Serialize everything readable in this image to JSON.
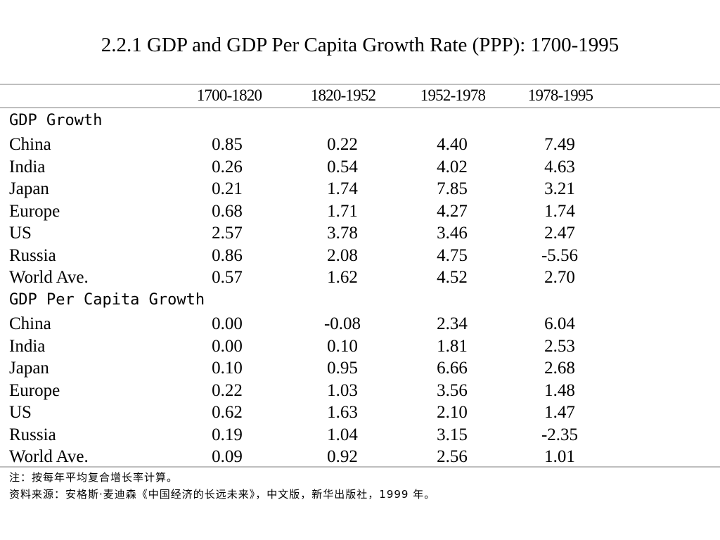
{
  "title": "2.2.1 GDP and GDP Per Capita Growth Rate (PPP): 1700-1995",
  "columns": [
    "1700-1820",
    "1820-1952",
    "1952-1978",
    "1978-1995"
  ],
  "sections": [
    {
      "label": "GDP Growth",
      "rows": [
        {
          "label": "China",
          "values": [
            "0.85",
            "0.22",
            "4.40",
            "7.49"
          ]
        },
        {
          "label": "India",
          "values": [
            "0.26",
            "0.54",
            "4.02",
            "4.63"
          ]
        },
        {
          "label": "Japan",
          "values": [
            "0.21",
            "1.74",
            "7.85",
            "3.21"
          ]
        },
        {
          "label": "Europe",
          "values": [
            "0.68",
            "1.71",
            "4.27",
            "1.74"
          ]
        },
        {
          "label": "US",
          "values": [
            "2.57",
            "3.78",
            "3.46",
            "2.47"
          ]
        },
        {
          "label": "Russia",
          "values": [
            "0.86",
            "2.08",
            "4.75",
            "-5.56"
          ]
        },
        {
          "label": "World Ave.",
          "values": [
            "0.57",
            "1.62",
            "4.52",
            "2.70"
          ]
        }
      ]
    },
    {
      "label": "GDP Per Capita Growth",
      "rows": [
        {
          "label": "China",
          "values": [
            "0.00",
            "-0.08",
            "2.34",
            "6.04"
          ]
        },
        {
          "label": "India",
          "values": [
            "0.00",
            "0.10",
            "1.81",
            "2.53"
          ]
        },
        {
          "label": "Japan",
          "values": [
            "0.10",
            "0.95",
            "6.66",
            "2.68"
          ]
        },
        {
          "label": "Europe",
          "values": [
            "0.22",
            "1.03",
            "3.56",
            "1.48"
          ]
        },
        {
          "label": "US",
          "values": [
            "0.62",
            "1.63",
            "2.10",
            "1.47"
          ]
        },
        {
          "label": "Russia",
          "values": [
            "0.19",
            "1.04",
            "3.15",
            "-2.35"
          ]
        },
        {
          "label": "World Ave.",
          "values": [
            "0.09",
            "0.92",
            "2.56",
            "1.01"
          ]
        }
      ]
    }
  ],
  "notes": [
    "注：按每年平均复合增长率计算。",
    "资料来源：安格斯·麦迪森《中国经济的长远未来》，中文版，新华出版社，1999 年。"
  ]
}
